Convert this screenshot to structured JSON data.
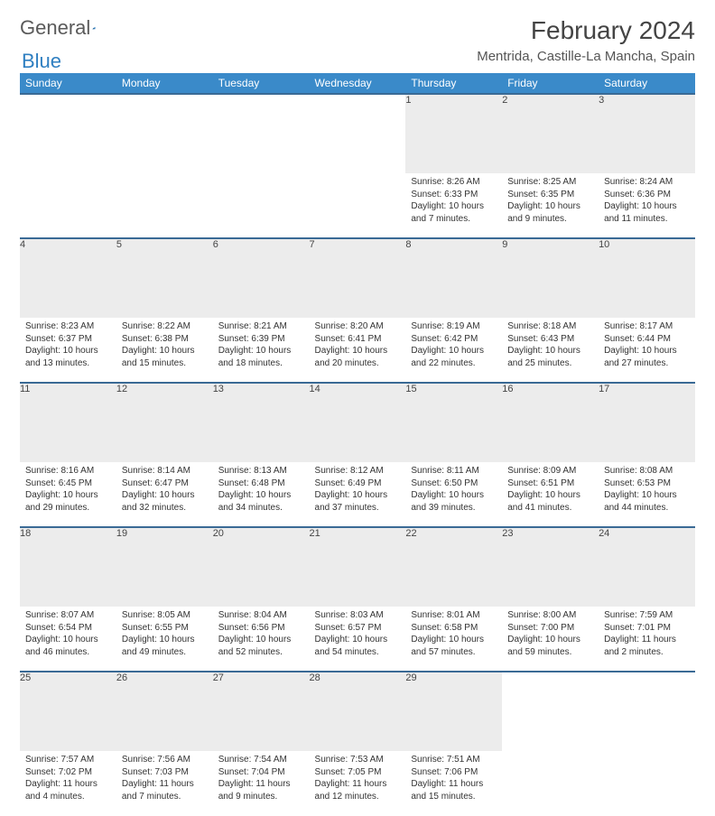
{
  "brand": {
    "general": "General",
    "blue": "Blue"
  },
  "title": "February 2024",
  "location": "Mentrida, Castille-La Mancha, Spain",
  "colors": {
    "header_bg": "#3a8ac9",
    "header_text": "#ffffff",
    "row_separator": "#3a6a95",
    "daynum_bg": "#ececec",
    "body_text": "#333333",
    "brand_gray": "#5a5a5a",
    "brand_blue": "#2f7fc1"
  },
  "weekdays": [
    "Sunday",
    "Monday",
    "Tuesday",
    "Wednesday",
    "Thursday",
    "Friday",
    "Saturday"
  ],
  "weeks": [
    [
      null,
      null,
      null,
      null,
      {
        "n": "1",
        "sr": "8:26 AM",
        "ss": "6:33 PM",
        "dl": "10 hours and 7 minutes."
      },
      {
        "n": "2",
        "sr": "8:25 AM",
        "ss": "6:35 PM",
        "dl": "10 hours and 9 minutes."
      },
      {
        "n": "3",
        "sr": "8:24 AM",
        "ss": "6:36 PM",
        "dl": "10 hours and 11 minutes."
      }
    ],
    [
      {
        "n": "4",
        "sr": "8:23 AM",
        "ss": "6:37 PM",
        "dl": "10 hours and 13 minutes."
      },
      {
        "n": "5",
        "sr": "8:22 AM",
        "ss": "6:38 PM",
        "dl": "10 hours and 15 minutes."
      },
      {
        "n": "6",
        "sr": "8:21 AM",
        "ss": "6:39 PM",
        "dl": "10 hours and 18 minutes."
      },
      {
        "n": "7",
        "sr": "8:20 AM",
        "ss": "6:41 PM",
        "dl": "10 hours and 20 minutes."
      },
      {
        "n": "8",
        "sr": "8:19 AM",
        "ss": "6:42 PM",
        "dl": "10 hours and 22 minutes."
      },
      {
        "n": "9",
        "sr": "8:18 AM",
        "ss": "6:43 PM",
        "dl": "10 hours and 25 minutes."
      },
      {
        "n": "10",
        "sr": "8:17 AM",
        "ss": "6:44 PM",
        "dl": "10 hours and 27 minutes."
      }
    ],
    [
      {
        "n": "11",
        "sr": "8:16 AM",
        "ss": "6:45 PM",
        "dl": "10 hours and 29 minutes."
      },
      {
        "n": "12",
        "sr": "8:14 AM",
        "ss": "6:47 PM",
        "dl": "10 hours and 32 minutes."
      },
      {
        "n": "13",
        "sr": "8:13 AM",
        "ss": "6:48 PM",
        "dl": "10 hours and 34 minutes."
      },
      {
        "n": "14",
        "sr": "8:12 AM",
        "ss": "6:49 PM",
        "dl": "10 hours and 37 minutes."
      },
      {
        "n": "15",
        "sr": "8:11 AM",
        "ss": "6:50 PM",
        "dl": "10 hours and 39 minutes."
      },
      {
        "n": "16",
        "sr": "8:09 AM",
        "ss": "6:51 PM",
        "dl": "10 hours and 41 minutes."
      },
      {
        "n": "17",
        "sr": "8:08 AM",
        "ss": "6:53 PM",
        "dl": "10 hours and 44 minutes."
      }
    ],
    [
      {
        "n": "18",
        "sr": "8:07 AM",
        "ss": "6:54 PM",
        "dl": "10 hours and 46 minutes."
      },
      {
        "n": "19",
        "sr": "8:05 AM",
        "ss": "6:55 PM",
        "dl": "10 hours and 49 minutes."
      },
      {
        "n": "20",
        "sr": "8:04 AM",
        "ss": "6:56 PM",
        "dl": "10 hours and 52 minutes."
      },
      {
        "n": "21",
        "sr": "8:03 AM",
        "ss": "6:57 PM",
        "dl": "10 hours and 54 minutes."
      },
      {
        "n": "22",
        "sr": "8:01 AM",
        "ss": "6:58 PM",
        "dl": "10 hours and 57 minutes."
      },
      {
        "n": "23",
        "sr": "8:00 AM",
        "ss": "7:00 PM",
        "dl": "10 hours and 59 minutes."
      },
      {
        "n": "24",
        "sr": "7:59 AM",
        "ss": "7:01 PM",
        "dl": "11 hours and 2 minutes."
      }
    ],
    [
      {
        "n": "25",
        "sr": "7:57 AM",
        "ss": "7:02 PM",
        "dl": "11 hours and 4 minutes."
      },
      {
        "n": "26",
        "sr": "7:56 AM",
        "ss": "7:03 PM",
        "dl": "11 hours and 7 minutes."
      },
      {
        "n": "27",
        "sr": "7:54 AM",
        "ss": "7:04 PM",
        "dl": "11 hours and 9 minutes."
      },
      {
        "n": "28",
        "sr": "7:53 AM",
        "ss": "7:05 PM",
        "dl": "11 hours and 12 minutes."
      },
      {
        "n": "29",
        "sr": "7:51 AM",
        "ss": "7:06 PM",
        "dl": "11 hours and 15 minutes."
      },
      null,
      null
    ]
  ],
  "labels": {
    "sunrise": "Sunrise:",
    "sunset": "Sunset:",
    "daylight": "Daylight:"
  }
}
